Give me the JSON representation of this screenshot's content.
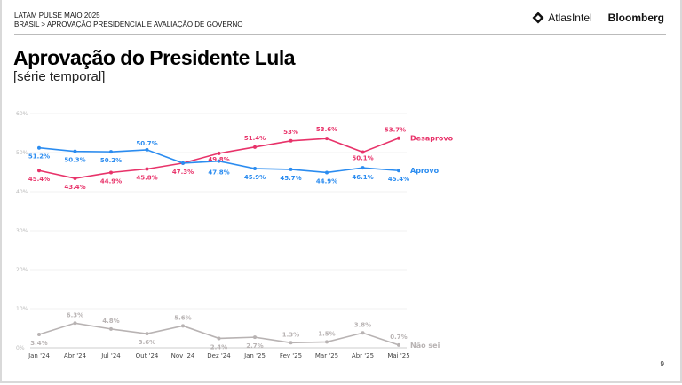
{
  "header": {
    "kicker_line1": "LATAM PULSE MAIO 2025",
    "kicker_line2": "BRASIL > APROVAÇÃO PRESIDENCIAL E AVALIAÇÃO DE GOVERNO",
    "logo_atlas": "AtlasIntel",
    "logo_bloomberg": "Bloomberg"
  },
  "title": "Aprovação do Presidente Lula",
  "subtitle": "[série temporal]",
  "page_number": "9",
  "chart_data": {
    "type": "line",
    "categories": [
      "Jan '24",
      "Abr '24",
      "Jul '24",
      "Out '24",
      "Nov '24",
      "Dez '24",
      "Jan '25",
      "Fev '25",
      "Mar '25",
      "Abr '25",
      "Mai '25"
    ],
    "ylim": [
      0,
      60
    ],
    "yticks": [
      "0%",
      "10%",
      "20%",
      "30%",
      "40%",
      "50%",
      "60%"
    ],
    "grid": true,
    "legend": "inline-right",
    "series": [
      {
        "name": "Desaprovo",
        "color": "#e8336a",
        "values": [
          45.4,
          43.4,
          44.9,
          45.8,
          47.3,
          49.8,
          51.4,
          53,
          53.6,
          50.1,
          53.7
        ],
        "labels": [
          "45.4%",
          "43.4%",
          "44.9%",
          "45.8%",
          "47.3%",
          "49.8%",
          "51.4%",
          "53%",
          "53.6%",
          "50.1%",
          "53.7%"
        ]
      },
      {
        "name": "Aprovo",
        "color": "#2b8cf0",
        "values": [
          51.2,
          50.3,
          50.2,
          50.7,
          47.3,
          47.8,
          45.9,
          45.7,
          44.9,
          46.1,
          45.4
        ],
        "labels": [
          "51.2%",
          "50.3%",
          "50.2%",
          "50.7%",
          "",
          "47.8%",
          "45.9%",
          "45.7%",
          "44.9%",
          "46.1%",
          "45.4%"
        ]
      },
      {
        "name": "Não sei",
        "color": "#b8b3b3",
        "values": [
          3.4,
          6.3,
          4.8,
          3.6,
          5.6,
          2.4,
          2.7,
          1.3,
          1.5,
          3.8,
          0.7
        ],
        "labels": [
          "3.4%",
          "6.3%",
          "4.8%",
          "3.6%",
          "5.6%",
          "2.4%",
          "2.7%",
          "1.3%",
          "1.5%",
          "3.8%",
          "0.7%"
        ]
      }
    ]
  }
}
